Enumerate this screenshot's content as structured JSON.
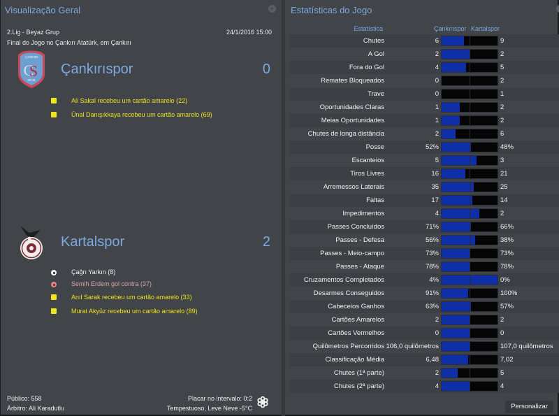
{
  "left_panel": {
    "title": "Visualização Geral",
    "competition": "2.Lig - Beyaz Grup",
    "datetime": "24/1/2016 15:00",
    "venue_line": "Final do Jogo no Çankırı Atatürk, em Çankırı",
    "home": {
      "name": "Çankırıspor",
      "score": "0",
      "logo": "cankirispor-crest",
      "events": [
        {
          "type": "yellow-card",
          "text": "Ali Sakal recebeu um cartão amarelo (22)"
        },
        {
          "type": "yellow-card",
          "text": "Ünal Danışıkkaya recebeu um cartão amarelo (69)"
        }
      ]
    },
    "away": {
      "name": "Kartalspor",
      "score": "2",
      "logo": "kartalspor-crest",
      "events": [
        {
          "type": "goal",
          "text": "Çağrı Yarkın (8)"
        },
        {
          "type": "own-goal",
          "text": "Semih Erdem gol contra (37)"
        },
        {
          "type": "yellow-card",
          "text": "Anıl Sarak recebeu um cartão amarelo (33)"
        },
        {
          "type": "yellow-card",
          "text": "Murat Akyüz recebeu um cartão amarelo (89)"
        }
      ]
    },
    "footer": {
      "attendance": "Público: 558",
      "referee": "Árbitro: Ali Karadutlu",
      "halftime": "Placar no intervalo: 0:2",
      "weather": "Tempestuoso, Leve Neve -5°C",
      "weather_icon": "snowflake-icon"
    }
  },
  "right_panel": {
    "title": "Estatísticas do Jogo",
    "header": {
      "stat": "Estatística",
      "home": "Çankırıspor",
      "away": "Kartalspor"
    },
    "colors": {
      "home_bar": "#0e2fa8",
      "away_bar": "#050506",
      "accent": "#7ea8df"
    },
    "stats": [
      {
        "label": "Chutes",
        "home": "6",
        "away": "9",
        "home_share": 40
      },
      {
        "label": "A Gol",
        "home": "2",
        "away": "2",
        "home_share": 50
      },
      {
        "label": "Fora do Gol",
        "home": "4",
        "away": "5",
        "home_share": 44
      },
      {
        "label": "Remates Bloqueados",
        "home": "0",
        "away": "2",
        "home_share": 0
      },
      {
        "label": "Trave",
        "home": "0",
        "away": "1",
        "home_share": 0
      },
      {
        "label": "Oportunidades Claras",
        "home": "1",
        "away": "2",
        "home_share": 33
      },
      {
        "label": "Meias Oportunidades",
        "home": "1",
        "away": "2",
        "home_share": 33
      },
      {
        "label": "Chutes de longa distância",
        "home": "2",
        "away": "6",
        "home_share": 25
      },
      {
        "label": "Posse",
        "home": "52%",
        "away": "48%",
        "home_share": 52
      },
      {
        "label": "Escanteios",
        "home": "5",
        "away": "3",
        "home_share": 62
      },
      {
        "label": "Tiros Livres",
        "home": "16",
        "away": "21",
        "home_share": 43
      },
      {
        "label": "Arremessos Laterais",
        "home": "35",
        "away": "25",
        "home_share": 58
      },
      {
        "label": "Faltas",
        "home": "17",
        "away": "14",
        "home_share": 55
      },
      {
        "label": "Impedimentos",
        "home": "4",
        "away": "2",
        "home_share": 67
      },
      {
        "label": "Passes Concluídos",
        "home": "71%",
        "away": "66%",
        "home_share": 52
      },
      {
        "label": "Passes - Defesa",
        "home": "56%",
        "away": "38%",
        "home_share": 60
      },
      {
        "label": "Passes - Meio-campo",
        "home": "73%",
        "away": "73%",
        "home_share": 50
      },
      {
        "label": "Passes - Ataque",
        "home": "78%",
        "away": "78%",
        "home_share": 50
      },
      {
        "label": "Cruzamentos Completados",
        "home": "4%",
        "away": "0%",
        "home_share": 100
      },
      {
        "label": "Desarmes Conseguidos",
        "home": "91%",
        "away": "100%",
        "home_share": 48
      },
      {
        "label": "Cabeceios Ganhos",
        "home": "63%",
        "away": "57%",
        "home_share": 53
      },
      {
        "label": "Cartões Amarelos",
        "home": "2",
        "away": "2",
        "home_share": 50
      },
      {
        "label": "Cartões Vermelhos",
        "home": "0",
        "away": "0",
        "home_share": 50
      },
      {
        "label": "Quilômetros Percorridos",
        "home": "106,0 quilômetros",
        "away": "107,0 quilômetros",
        "home_share": 50
      },
      {
        "label": "Classificação Média",
        "home": "6,48",
        "away": "7,02",
        "home_share": 48
      },
      {
        "label": "Chutes (1ª parte)",
        "home": "2",
        "away": "5",
        "home_share": 29
      },
      {
        "label": "Chutes (2ª parte)",
        "home": "4",
        "away": "4",
        "home_share": 50
      }
    ],
    "customize_label": "Personalizar"
  }
}
